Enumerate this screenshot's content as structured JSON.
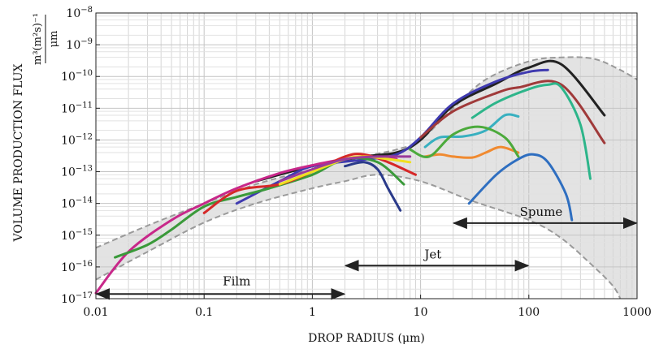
{
  "chart_data": {
    "type": "line",
    "title": "",
    "xlabel": "DROP RADIUS (μm)",
    "ylabel": "VOLUME PRODUCTION FLUX",
    "ylabel_unit_top": "m³(m²s)⁻¹",
    "ylabel_unit_bottom": "μm",
    "xscale": "log",
    "yscale": "log",
    "xlim": [
      0.01,
      1000
    ],
    "ylim": [
      1e-17,
      1e-08
    ],
    "grid": true,
    "x_ticks": [
      0.01,
      0.1,
      1,
      10,
      100,
      1000
    ],
    "x_tick_labels": [
      "0.01",
      "0.1",
      "1",
      "10",
      "100",
      "1000"
    ],
    "y_ticks": [
      1e-17,
      1e-16,
      1e-15,
      1e-14,
      1e-13,
      1e-12,
      1e-11,
      1e-10,
      1e-09,
      1e-08
    ],
    "y_tick_labels": [
      {
        "base": "10",
        "exp": "−17"
      },
      {
        "base": "10",
        "exp": "−16"
      },
      {
        "base": "10",
        "exp": "−15"
      },
      {
        "base": "10",
        "exp": "−14"
      },
      {
        "base": "10",
        "exp": "−13"
      },
      {
        "base": "10",
        "exp": "−12"
      },
      {
        "base": "10",
        "exp": "−11"
      },
      {
        "base": "10",
        "exp": "−10"
      },
      {
        "base": "10",
        "exp": "−9"
      },
      {
        "base": "10",
        "exp": "−8"
      }
    ],
    "envelope": {
      "upper": [
        [
          0.01,
          4e-16
        ],
        [
          0.03,
          2e-15
        ],
        [
          0.1,
          1e-14
        ],
        [
          0.3,
          4e-14
        ],
        [
          1,
          1.2e-13
        ],
        [
          3,
          3e-13
        ],
        [
          6,
          5e-13
        ],
        [
          10,
          1e-12
        ],
        [
          20,
          1e-11
        ],
        [
          40,
          8e-11
        ],
        [
          100,
          3e-10
        ],
        [
          200,
          4e-10
        ],
        [
          400,
          3.6e-10
        ],
        [
          700,
          1.6e-10
        ],
        [
          1000,
          8e-11
        ]
      ],
      "lower": [
        [
          0.01,
          4e-17
        ],
        [
          0.03,
          3e-16
        ],
        [
          0.1,
          2.5e-15
        ],
        [
          0.3,
          1e-14
        ],
        [
          1,
          3e-14
        ],
        [
          2,
          5e-14
        ],
        [
          4,
          8e-14
        ],
        [
          10,
          5e-14
        ],
        [
          30,
          1.2e-14
        ],
        [
          100,
          3e-15
        ],
        [
          200,
          8e-16
        ],
        [
          400,
          1e-16
        ],
        [
          600,
          2.5e-17
        ],
        [
          700,
          1e-17
        ]
      ]
    },
    "series": [
      {
        "name": "black",
        "color": "#222222",
        "points": [
          [
            0.3,
            5e-14
          ],
          [
            1,
            1.5e-13
          ],
          [
            3,
            3e-13
          ],
          [
            6,
            4e-13
          ],
          [
            10,
            1e-12
          ],
          [
            20,
            1.2e-11
          ],
          [
            50,
            6e-11
          ],
          [
            100,
            1.9e-10
          ],
          [
            200,
            2.4e-10
          ],
          [
            500,
            6e-12
          ]
        ]
      },
      {
        "name": "dark-blue",
        "color": "#3f3ab0",
        "points": [
          [
            0.2,
            1e-14
          ],
          [
            0.5,
            5e-14
          ],
          [
            1,
            1.5e-13
          ],
          [
            3,
            2.4e-13
          ],
          [
            6,
            3.5e-13
          ],
          [
            10,
            1.2e-12
          ],
          [
            20,
            1.4e-11
          ],
          [
            50,
            7e-11
          ],
          [
            100,
            1.4e-10
          ],
          [
            150,
            1.6e-10
          ]
        ]
      },
      {
        "name": "dark-red",
        "color": "#a03a3a",
        "points": [
          [
            10,
            1.2e-12
          ],
          [
            20,
            8e-12
          ],
          [
            50,
            3e-11
          ],
          [
            80,
            4.5e-11
          ],
          [
            200,
            5.5e-11
          ],
          [
            500,
            8e-13
          ]
        ]
      },
      {
        "name": "green-teal",
        "color": "#2db58a",
        "points": [
          [
            30,
            5e-12
          ],
          [
            50,
            1.5e-11
          ],
          [
            100,
            4e-11
          ],
          [
            150,
            5.5e-11
          ],
          [
            200,
            4.5e-11
          ],
          [
            300,
            3e-12
          ],
          [
            370,
            6e-14
          ]
        ]
      },
      {
        "name": "cyan",
        "color": "#38b0c0",
        "points": [
          [
            11,
            6e-13
          ],
          [
            15,
            1.2e-12
          ],
          [
            25,
            1.3e-12
          ],
          [
            40,
            2e-12
          ],
          [
            60,
            6e-12
          ],
          [
            80,
            5.5e-12
          ]
        ]
      },
      {
        "name": "orange",
        "color": "#f08a30",
        "points": [
          [
            11,
            3e-13
          ],
          [
            15,
            3.5e-13
          ],
          [
            20,
            3e-13
          ],
          [
            30,
            2.8e-13
          ],
          [
            40,
            4e-13
          ],
          [
            55,
            6e-13
          ],
          [
            80,
            4e-13
          ]
        ]
      },
      {
        "name": "blue",
        "color": "#2e6ec0",
        "points": [
          [
            28,
            1e-14
          ],
          [
            50,
            8e-14
          ],
          [
            80,
            2.5e-13
          ],
          [
            110,
            3.5e-13
          ],
          [
            150,
            2e-13
          ],
          [
            220,
            2e-14
          ],
          [
            250,
            3e-15
          ]
        ]
      },
      {
        "name": "green-mid",
        "color": "#4caa3c",
        "points": [
          [
            8,
            5e-13
          ],
          [
            12,
            3e-13
          ],
          [
            20,
            1.5e-12
          ],
          [
            35,
            2.6e-12
          ],
          [
            60,
            1.2e-12
          ],
          [
            80,
            3e-13
          ]
        ]
      },
      {
        "name": "magenta",
        "color": "#c8288a",
        "points": [
          [
            0.01,
            1.5e-17
          ],
          [
            0.02,
            3e-16
          ],
          [
            0.05,
            3e-15
          ],
          [
            0.1,
            1e-14
          ],
          [
            0.2,
            3e-14
          ],
          [
            0.5,
            9e-14
          ],
          [
            1,
            1.6e-13
          ],
          [
            2,
            2.5e-13
          ],
          [
            4,
            3e-13
          ],
          [
            6,
            2.5e-13
          ]
        ]
      },
      {
        "name": "green",
        "color": "#3a9a3a",
        "points": [
          [
            0.015,
            2e-16
          ],
          [
            0.03,
            5e-16
          ],
          [
            0.05,
            1.5e-15
          ],
          [
            0.1,
            8e-15
          ],
          [
            0.2,
            1.6e-14
          ],
          [
            0.4,
            3e-14
          ],
          [
            1,
            8e-14
          ],
          [
            2,
            2.5e-13
          ],
          [
            4,
            2e-13
          ],
          [
            7,
            4e-14
          ]
        ]
      },
      {
        "name": "red",
        "color": "#d62828",
        "points": [
          [
            0.1,
            5e-15
          ],
          [
            0.2,
            2.5e-14
          ],
          [
            0.5,
            4e-14
          ],
          [
            1,
            1e-13
          ],
          [
            2,
            3e-13
          ],
          [
            3,
            3.5e-13
          ],
          [
            5,
            2e-13
          ],
          [
            9,
            8e-14
          ]
        ]
      },
      {
        "name": "yellow",
        "color": "#f0e020",
        "points": [
          [
            0.5,
            4e-14
          ],
          [
            1,
            1e-13
          ],
          [
            2,
            2.5e-13
          ],
          [
            3,
            3e-13
          ],
          [
            5,
            2.5e-13
          ],
          [
            8,
            2e-13
          ]
        ]
      },
      {
        "name": "purple",
        "color": "#9a3a9a",
        "points": [
          [
            0.5,
            5e-14
          ],
          [
            1,
            1.2e-13
          ],
          [
            2,
            2.5e-13
          ],
          [
            4,
            3e-13
          ],
          [
            8,
            3e-13
          ]
        ]
      },
      {
        "name": "navy",
        "color": "#2a3a8a",
        "points": [
          [
            2,
            1.5e-13
          ],
          [
            3,
            2e-13
          ],
          [
            4,
            1.2e-13
          ],
          [
            5,
            3e-14
          ],
          [
            6.5,
            6e-15
          ]
        ]
      }
    ],
    "annotations": [
      {
        "label": "Film",
        "x_start": 0.01,
        "x_end": 2,
        "y": 1.4e-17,
        "label_x": 0.2,
        "label_y": 3.5e-17
      },
      {
        "label": "Jet",
        "x_start": 2,
        "x_end": 100,
        "y": 1.1e-16,
        "label_x": 13,
        "label_y": 2.5e-16
      },
      {
        "label": "Spume",
        "x_start": 20,
        "x_end": 1000,
        "y": 2.4e-15,
        "label_x": 130,
        "label_y": 5.5e-15
      }
    ]
  }
}
